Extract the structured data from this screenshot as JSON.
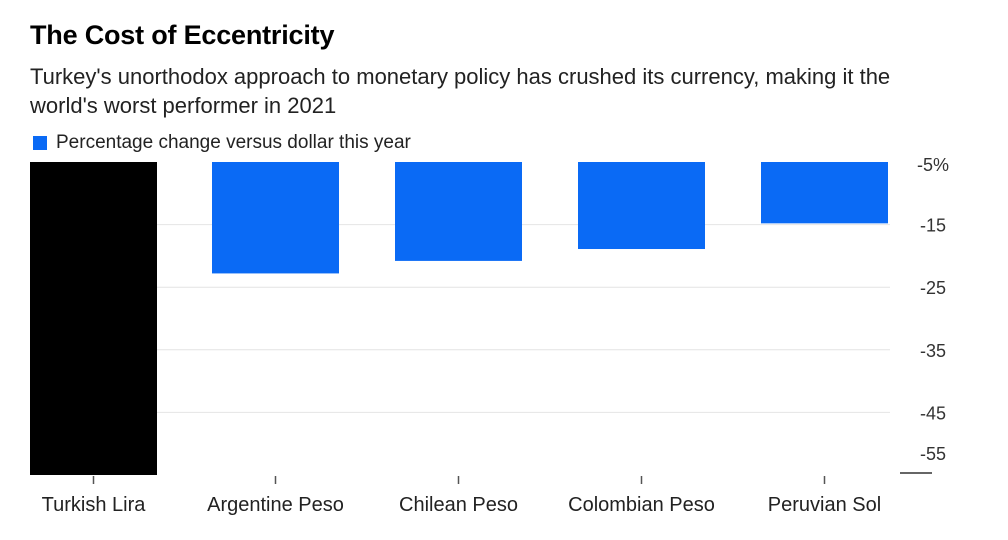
{
  "title": "The Cost of Eccentricity",
  "subtitle": "Turkey's unorthodox approach to monetary policy has crushed its currency, making it the world's worst performer in 2021",
  "legend": [
    {
      "label": "Percentage change versus dollar this year",
      "color": "#0a6af5"
    }
  ],
  "chart_data": {
    "type": "bar",
    "categories": [
      "Turkish Lira",
      "Argentine Peso",
      "Chilean Peso",
      "Colombian Peso",
      "Peruvian Sol"
    ],
    "values": [
      -55,
      -22.8,
      -20.8,
      -18.9,
      -14.8
    ],
    "colors": [
      "#000000",
      "#0a6af5",
      "#0a6af5",
      "#0a6af5",
      "#0a6af5"
    ],
    "series": [
      {
        "name": "Percentage change versus dollar this year",
        "values": [
          -55,
          -22.8,
          -20.8,
          -18.9,
          -14.8
        ]
      }
    ],
    "ylim": [
      -55,
      -5
    ],
    "yticks": [
      -5,
      -15,
      -25,
      -35,
      -45,
      -55
    ],
    "ytick_labels": [
      "-5%",
      "-15",
      "-25",
      "-35",
      "-45",
      "-55"
    ],
    "y_axis_position": "right",
    "grid": true
  }
}
